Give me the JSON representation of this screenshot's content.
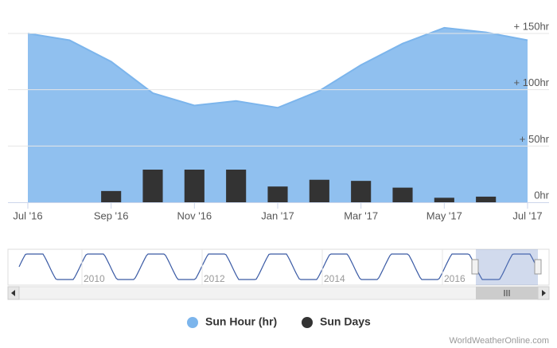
{
  "chart_data": {
    "type": "area-column",
    "categories": [
      "Jul '16",
      null,
      "Sep '16",
      null,
      "Nov '16",
      null,
      "Jan '17",
      null,
      "Mar '17",
      null,
      "May '17",
      null,
      "Jul '17"
    ],
    "series": [
      {
        "name": "Sun Hour (hr)",
        "type": "area",
        "color": "#7cb5ec",
        "values": [
          150,
          144,
          125,
          97,
          86,
          90,
          84,
          99,
          122,
          141,
          155,
          151,
          144
        ]
      },
      {
        "name": "Sun Days",
        "type": "column",
        "color": "#333333",
        "values": [
          null,
          null,
          10,
          29,
          29,
          29,
          14,
          20,
          19,
          13,
          4,
          5,
          null
        ]
      }
    ],
    "ylim": [
      0,
      150
    ],
    "yticks": [
      {
        "value": 0,
        "label": "0hr"
      },
      {
        "value": 50,
        "label": "+ 50hr"
      },
      {
        "value": 100,
        "label": "+ 100hr"
      },
      {
        "value": 150,
        "label": "+ 150hr"
      }
    ],
    "grid": true
  },
  "navigator": {
    "xticks": [
      "2010",
      "2012",
      "2014",
      "2016"
    ]
  },
  "credit": "WorldWeatherOnline.com"
}
